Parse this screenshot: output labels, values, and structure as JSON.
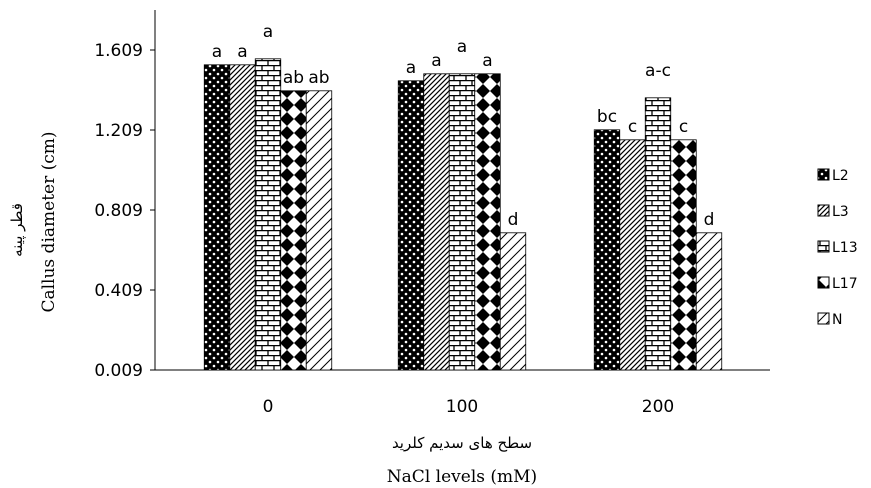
{
  "chart_data": {
    "type": "bar",
    "categories": [
      "0",
      "100",
      "200"
    ],
    "xlabel_fa": "سطح های سدیم کلرید",
    "xlabel": "NaCl levels (mM)",
    "ylabel": "Callus diameter (cm)",
    "ylabel_fa": "قطر پینه",
    "ylim": [
      0.009,
      1.809
    ],
    "yticks": [
      "1.609",
      "1.209",
      "0.809",
      "0.409",
      "0.009"
    ],
    "grid": false,
    "legend_position": "right",
    "series": [
      {
        "name": "L2",
        "pattern": "dots-dark",
        "values": [
          1.535,
          1.455,
          1.21
        ],
        "letters": [
          "a",
          "a",
          "bc"
        ]
      },
      {
        "name": "L3",
        "pattern": "diagonal-dense",
        "values": [
          1.535,
          1.49,
          1.16
        ],
        "letters": [
          "a",
          "a",
          "c"
        ]
      },
      {
        "name": "L13",
        "pattern": "brick",
        "values": [
          1.565,
          1.49,
          1.37
        ],
        "letters": [
          "a",
          "a",
          "a-c"
        ]
      },
      {
        "name": "L17",
        "pattern": "diamond-check",
        "values": [
          1.405,
          1.49,
          1.16
        ],
        "letters": [
          "ab",
          "a",
          "c"
        ]
      },
      {
        "name": "N",
        "pattern": "diagonal-wide",
        "values": [
          1.405,
          0.695,
          0.695
        ],
        "letters": [
          "ab",
          "d",
          "d"
        ]
      }
    ]
  }
}
